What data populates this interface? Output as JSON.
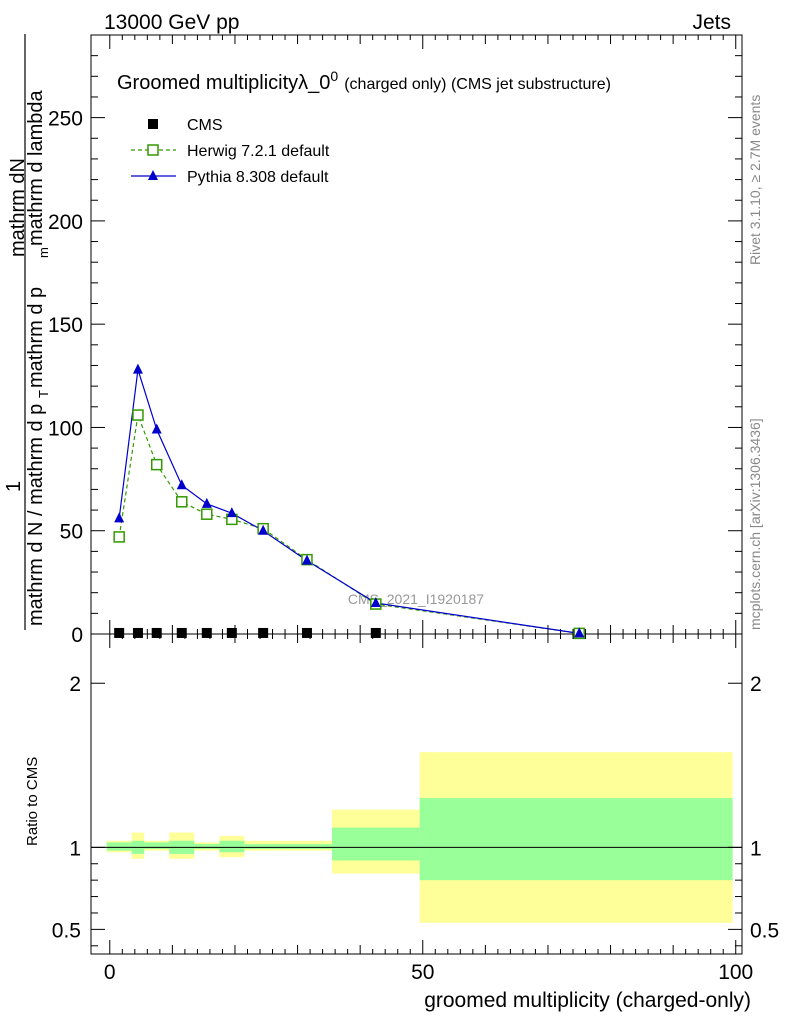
{
  "header": {
    "left": "13000 GeV pp",
    "right": "Jets"
  },
  "plot": {
    "title_main": "Groomed multiplicity",
    "title_lambda": "λ_0",
    "title_sup": "0",
    "title_tail": "(charged only) (CMS jet substructure)",
    "watermark": "CMS_2021_I1920187",
    "side_right_top": "Rivet 3.1.10, ≥ 2.7M events",
    "side_right_bottom": "mcplots.cern.ch [arXiv:1306.3436]",
    "ylabel_num": "mathrm dN",
    "ylabel_num_1": "1",
    "ylabel_den": "mathrm d N / mathrm d p",
    "ylabel_den_tail": "mathrm d p",
    "ylabel_den_tail2": "mathrm d lambda",
    "ylabel_sub_T": "T",
    "ylabel_sub_m": "m",
    "ratio_ylabel": "Ratio to CMS",
    "xlabel": "groomed multiplicity (charged-only)"
  },
  "legend": [
    {
      "label": "CMS",
      "color": "#000000",
      "marker": "square-filled"
    },
    {
      "label": "Herwig 7.2.1 default",
      "color": "#339900",
      "marker": "square-open"
    },
    {
      "label": "Pythia 8.308 default",
      "color": "#0000cc",
      "marker": "triangle-filled"
    }
  ],
  "chart_data": {
    "type": "line",
    "x_range": [
      -3,
      101
    ],
    "ylim_main": [
      0,
      290
    ],
    "ylim_ratio": [
      0.35,
      2.3
    ],
    "xticks": [
      "0",
      "50",
      "100"
    ],
    "yticks_main": [
      "0",
      "50",
      "100",
      "150",
      "200",
      "250"
    ],
    "yticks_ratio": [
      "0.5",
      "1",
      "2"
    ],
    "cms": {
      "x": [
        1.5,
        4.5,
        7.5,
        11.5,
        15.5,
        19.5,
        24.5,
        31.5,
        42.5
      ],
      "y": [
        0.5,
        0.5,
        0.5,
        0.5,
        0.5,
        0.5,
        0.5,
        0.5,
        0.5
      ]
    },
    "series": [
      {
        "name": "Herwig 7.2.1 default",
        "color": "#339900",
        "x": [
          1.5,
          4.5,
          7.5,
          11.5,
          15.5,
          19.5,
          24.5,
          31.5,
          42.5,
          75
        ],
        "y": [
          47,
          106,
          82,
          64,
          58,
          55.5,
          51,
          36,
          14.5,
          0.3
        ]
      },
      {
        "name": "Pythia 8.308 default",
        "color": "#0000cc",
        "x": [
          1.5,
          4.5,
          7.5,
          11.5,
          15.5,
          19.5,
          24.5,
          31.5,
          42.5,
          75
        ],
        "y": [
          56,
          128,
          99,
          72,
          63,
          58.5,
          50,
          35.5,
          15,
          0.3
        ]
      }
    ],
    "ratio_bands": [
      {
        "x0": -0.5,
        "x1": 3.5,
        "y_lo": 0.97,
        "y_hi": 1.04,
        "g_lo": 0.98,
        "g_hi": 1.03
      },
      {
        "x0": 3.5,
        "x1": 5.5,
        "y_lo": 0.93,
        "y_hi": 1.09,
        "g_lo": 0.96,
        "g_hi": 1.04
      },
      {
        "x0": 5.5,
        "x1": 9.5,
        "y_lo": 0.98,
        "y_hi": 1.04,
        "g_lo": 0.99,
        "g_hi": 1.03
      },
      {
        "x0": 9.5,
        "x1": 13.5,
        "y_lo": 0.93,
        "y_hi": 1.09,
        "g_lo": 0.96,
        "g_hi": 1.04
      },
      {
        "x0": 13.5,
        "x1": 17.5,
        "y_lo": 0.98,
        "y_hi": 1.03,
        "g_lo": 0.99,
        "g_hi": 1.02
      },
      {
        "x0": 17.5,
        "x1": 21.5,
        "y_lo": 0.94,
        "y_hi": 1.07,
        "g_lo": 0.97,
        "g_hi": 1.04
      },
      {
        "x0": 21.5,
        "x1": 27.5,
        "y_lo": 0.98,
        "y_hi": 1.04,
        "g_lo": 0.99,
        "g_hi": 1.02
      },
      {
        "x0": 27.5,
        "x1": 35.5,
        "y_lo": 0.98,
        "y_hi": 1.04,
        "g_lo": 0.99,
        "g_hi": 1.02
      },
      {
        "x0": 35.5,
        "x1": 49.5,
        "y_lo": 0.84,
        "y_hi": 1.23,
        "g_lo": 0.92,
        "g_hi": 1.12
      },
      {
        "x0": 49.5,
        "x1": 99.5,
        "y_lo": 0.54,
        "y_hi": 1.58,
        "g_lo": 0.8,
        "g_hi": 1.3
      }
    ],
    "ratio_line": 1.0
  }
}
